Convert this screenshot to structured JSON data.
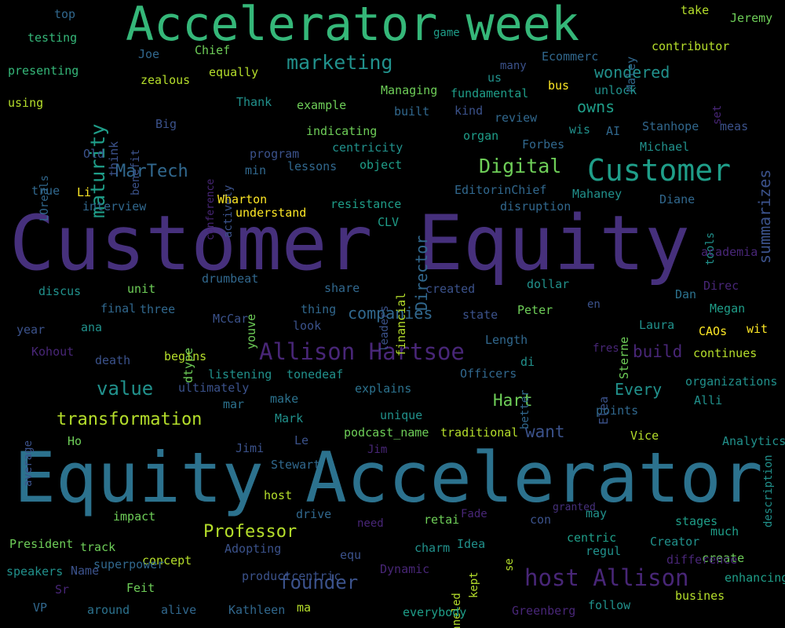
{
  "palette": {
    "background": "#000000",
    "dark_purple": "#46307c",
    "purple": "#482677",
    "indigo": "#3b528b",
    "blue": "#31688e",
    "teal_blue": "#2c728e",
    "teal": "#21918c",
    "sea_green": "#1f9e89",
    "green": "#35b779",
    "light_green": "#6ece58",
    "yellow_green": "#b5de2b",
    "yellow": "#fde725"
  },
  "words": [
    "Customer Equity",
    "Equity Accelerator",
    "Accelerator week",
    "Customer",
    "Allison Hartsoe",
    "host Allison",
    "marketing",
    "maturity",
    "Digital",
    "MarTech",
    "transformation",
    "value",
    "founder",
    "Professor",
    "companies",
    "owns",
    "wondered",
    "summarizes",
    "Director",
    "build",
    "Every",
    "Hart",
    "want",
    "top",
    "testing",
    "presenting",
    "using",
    "Joe",
    "Chief",
    "zealous",
    "equally",
    "game",
    "Jeremy",
    "take",
    "contributor",
    "Maley",
    "Ecommerc",
    "many",
    "us",
    "bus",
    "fundamental",
    "Managing",
    "unlock",
    "built",
    "kind",
    "review",
    "organ",
    "Thank",
    "example",
    "indicating",
    "centricity",
    "program",
    "lessons",
    "object",
    "min",
    "Big",
    "Old",
    "think",
    "benefit",
    "conference",
    "actively",
    "LOreals",
    "true",
    "Li",
    "interview",
    "Wharton",
    "understand",
    "resistance",
    "CLV",
    "EditorinChief",
    "Mahaney",
    "disruption",
    "Forbes",
    "wis",
    "AI",
    "Stanhope",
    "meas",
    "Michael",
    "set",
    "Diane",
    "tools",
    "academia",
    "Direc",
    "Dan",
    "Megan",
    "CAOs",
    "wit",
    "continues",
    "Laura",
    "Sterne",
    "dollar",
    "en",
    "fres",
    "Elea",
    "better",
    "di",
    "Officers",
    "Length",
    "Peter",
    "state",
    "thing",
    "share",
    "leaders",
    "financial",
    "created",
    "youve",
    "drumbeat",
    "McCar",
    "look",
    "dtype",
    "three",
    "final",
    "unit",
    "discus",
    "year",
    "ana",
    "Kohout",
    "death",
    "begins",
    "listening",
    "tonedeaf",
    "explains",
    "organizations",
    "Alli",
    "points",
    "description",
    "Analytics",
    "Vice",
    "average",
    "ultimately",
    "mar",
    "make",
    "Mark",
    "unique",
    "podcast_name",
    "traditional",
    "Le",
    "Jim",
    "Jimi",
    "Ho",
    "Stewart",
    "host",
    "drive",
    "need",
    "retai",
    "Fade",
    "granted",
    "con",
    "may",
    "stages",
    "much",
    "Creator",
    "regul",
    "centric",
    "Idea",
    "charm",
    "se",
    "channeled",
    "kept",
    "equ",
    "Dynamic",
    "Adopting",
    "concept",
    "superpower",
    "track",
    "President",
    "impact",
    "speakers",
    "Name",
    "Sr",
    "Feit",
    "productcentric",
    "VP",
    "around",
    "alive",
    "Kathleen",
    "ma",
    "everybody",
    "Greenberg",
    "follow",
    "busines",
    "enhancing",
    "create",
    "difference",
    "one"
  ]
}
